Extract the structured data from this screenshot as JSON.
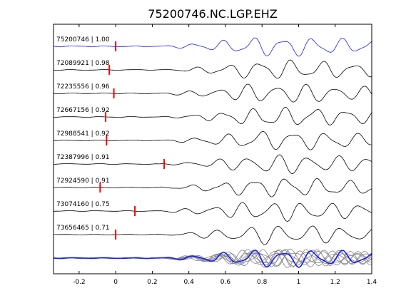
{
  "chart_data": {
    "type": "line",
    "title": "75200746.NC.LGP.EHZ",
    "xlabel": "",
    "ylabel": "",
    "xlim": [
      -0.34,
      1.4
    ],
    "x_ticks": [
      -0.2,
      0,
      0.2,
      0.4,
      0.6,
      0.8,
      1,
      1.2,
      1.4
    ],
    "x_tick_labels": [
      "-0.2",
      "0",
      "0.2",
      "0.4",
      "0.6",
      "0.8",
      "1",
      "1.2",
      "1.4"
    ],
    "grid": false,
    "legend": "none",
    "colors": {
      "reference": "#1a1aff",
      "trace": "#000000",
      "stack": "#808080",
      "pick": "#ff0000"
    },
    "series": [
      {
        "label": "75200746 | 1.00",
        "pick_time": 0.0
      },
      {
        "label": "72089921 | 0.98",
        "pick_time": -0.035
      },
      {
        "label": "72235556 | 0.96",
        "pick_time": -0.01
      },
      {
        "label": "72667156 | 0.92",
        "pick_time": -0.055
      },
      {
        "label": "72988541 | 0.92",
        "pick_time": -0.05
      },
      {
        "label": "72387996 | 0.91",
        "pick_time": 0.265
      },
      {
        "label": "72924590 | 0.91",
        "pick_time": -0.085
      },
      {
        "label": "73074160 | 0.75",
        "pick_time": 0.105
      },
      {
        "label": "73656465 | 0.71",
        "pick_time": 0.0
      }
    ],
    "stack": {
      "description": "overlay of all traces",
      "reference_label": "75200746"
    }
  }
}
